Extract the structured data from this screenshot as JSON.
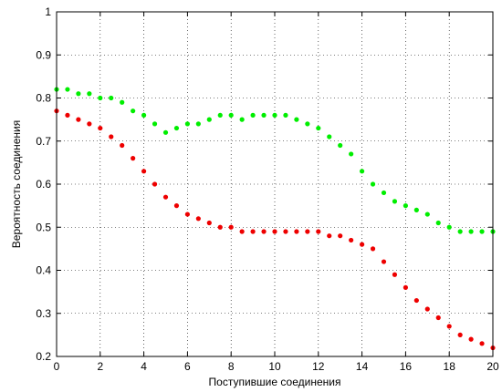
{
  "chart_data": {
    "type": "scatter",
    "title": "",
    "xlabel": "Поступившие соединения",
    "ylabel": "Вероятность соединения",
    "xlim": [
      0,
      20
    ],
    "ylim": [
      0.2,
      1
    ],
    "grid": true,
    "xticks": [
      0,
      2,
      4,
      6,
      8,
      10,
      12,
      14,
      16,
      18,
      20
    ],
    "yticks": [
      0.2,
      0.3,
      0.4,
      0.5,
      0.6,
      0.7,
      0.8,
      0.9,
      1
    ],
    "xtick_labels": [
      "0",
      "2",
      "4",
      "6",
      "8",
      "10",
      "12",
      "14",
      "16",
      "18",
      "20"
    ],
    "ytick_labels": [
      "0.2",
      "0.3",
      "0.4",
      "0.5",
      "0.6",
      "0.7",
      "0.8",
      "0.9",
      "1"
    ],
    "series": [
      {
        "color": "#00ee00",
        "marker": "dot",
        "x": [
          0.0,
          0.5,
          1.0,
          1.5,
          2.0,
          2.5,
          3.0,
          3.5,
          4.0,
          4.5,
          5.0,
          5.5,
          6.0,
          6.5,
          7.0,
          7.5,
          8.0,
          8.5,
          9.0,
          9.5,
          10.0,
          10.5,
          11.0,
          11.5,
          12.0,
          12.5,
          13.0,
          13.5,
          14.0,
          14.5,
          15.0,
          15.5,
          16.0,
          16.5,
          17.0,
          17.5,
          18.0,
          18.5,
          19.0,
          19.5,
          20.0
        ],
        "y": [
          0.82,
          0.82,
          0.81,
          0.81,
          0.8,
          0.8,
          0.79,
          0.77,
          0.76,
          0.74,
          0.72,
          0.73,
          0.74,
          0.74,
          0.75,
          0.76,
          0.76,
          0.75,
          0.76,
          0.76,
          0.76,
          0.76,
          0.75,
          0.74,
          0.73,
          0.71,
          0.69,
          0.67,
          0.63,
          0.6,
          0.58,
          0.56,
          0.55,
          0.54,
          0.53,
          0.51,
          0.5,
          0.49,
          0.49,
          0.49,
          0.49
        ]
      },
      {
        "color": "#ee0000",
        "marker": "dot",
        "x": [
          0.0,
          0.5,
          1.0,
          1.5,
          2.0,
          2.5,
          3.0,
          3.5,
          4.0,
          4.5,
          5.0,
          5.5,
          6.0,
          6.5,
          7.0,
          7.5,
          8.0,
          8.5,
          9.0,
          9.5,
          10.0,
          10.5,
          11.0,
          11.5,
          12.0,
          12.5,
          13.0,
          13.5,
          14.0,
          14.5,
          15.0,
          15.5,
          16.0,
          16.5,
          17.0,
          17.5,
          18.0,
          18.5,
          19.0,
          19.5,
          20.0
        ],
        "y": [
          0.77,
          0.76,
          0.75,
          0.74,
          0.73,
          0.71,
          0.69,
          0.66,
          0.63,
          0.6,
          0.57,
          0.55,
          0.53,
          0.52,
          0.51,
          0.5,
          0.5,
          0.49,
          0.49,
          0.49,
          0.49,
          0.49,
          0.49,
          0.49,
          0.49,
          0.48,
          0.48,
          0.47,
          0.46,
          0.45,
          0.42,
          0.39,
          0.36,
          0.33,
          0.31,
          0.29,
          0.27,
          0.25,
          0.24,
          0.23,
          0.22
        ]
      }
    ]
  }
}
